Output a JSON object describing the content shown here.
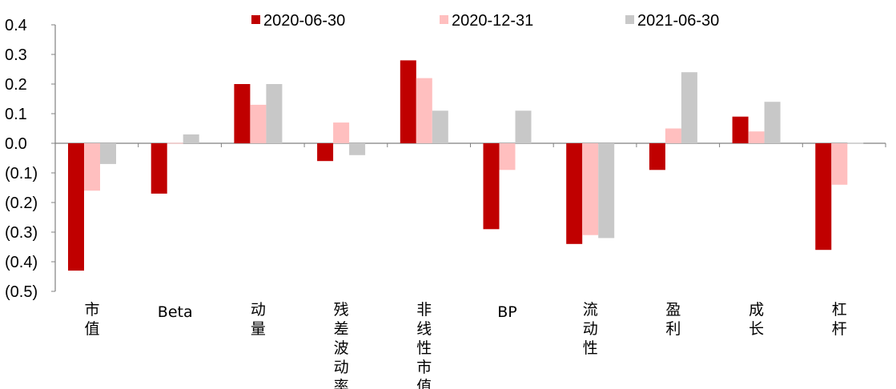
{
  "chart_data": {
    "type": "bar",
    "categories": [
      "市值",
      "Beta",
      "动量",
      "残差波动率",
      "非线性市值",
      "BP",
      "流动性",
      "盈利",
      "成长",
      "杠杆"
    ],
    "series": [
      {
        "name": "2020-06-30",
        "color": "#c00000",
        "values": [
          -0.43,
          -0.17,
          0.2,
          -0.06,
          0.28,
          -0.29,
          -0.34,
          -0.09,
          0.09,
          -0.36
        ]
      },
      {
        "name": "2020-12-31",
        "color": "#ffbfbf",
        "values": [
          -0.16,
          0.0,
          0.13,
          0.07,
          0.22,
          -0.09,
          -0.31,
          0.05,
          0.04,
          -0.14
        ]
      },
      {
        "name": "2021-06-30",
        "color": "#c8c8c8",
        "values": [
          -0.07,
          0.03,
          0.2,
          -0.04,
          0.11,
          0.11,
          -0.32,
          0.24,
          0.14,
          0.0
        ]
      }
    ],
    "y_ticks": [
      "0.4",
      "0.3",
      "0.2",
      "0.1",
      "0.0",
      "(0.1)",
      "(0.2)",
      "(0.3)",
      "(0.4)",
      "(0.5)"
    ],
    "ylim": [
      -0.5,
      0.4
    ],
    "legend_position": "top-center",
    "grid": false
  }
}
